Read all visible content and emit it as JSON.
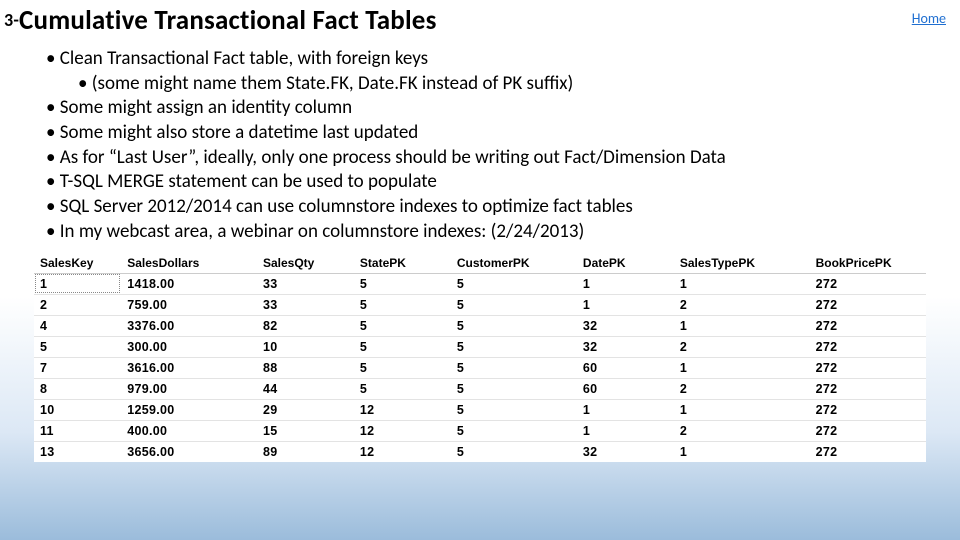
{
  "header": {
    "prefix": "3-",
    "title": "Cumulative Transactional Fact Tables",
    "home": "Home"
  },
  "bullets": [
    {
      "text": "Clean Transactional Fact table, with foreign keys",
      "sub": false
    },
    {
      "text": "(some might name them State.FK, Date.FK instead of PK suffix)",
      "sub": true
    },
    {
      "text": "Some might assign an identity column",
      "sub": false
    },
    {
      "text": "Some might also store a datetime last updated",
      "sub": false
    },
    {
      "text": "As for “Last User”, ideally, only one process should be writing out Fact/Dimension Data",
      "sub": false
    },
    {
      "text": "T-SQL MERGE statement can be used to populate",
      "sub": false
    },
    {
      "text": "SQL Server 2012/2014 can use columnstore indexes to optimize fact tables",
      "sub": false
    },
    {
      "text": "In my webcast area, a webinar on columnstore indexes: (2/24/2013)",
      "sub": false
    }
  ],
  "table": {
    "columns": [
      "SalesKey",
      "SalesDollars",
      "SalesQty",
      "StatePK",
      "CustomerPK",
      "DatePK",
      "SalesTypePK",
      "BookPricePK"
    ],
    "rows": [
      [
        "1",
        "1418.00",
        "33",
        "5",
        "5",
        "1",
        "1",
        "272"
      ],
      [
        "2",
        "759.00",
        "33",
        "5",
        "5",
        "1",
        "2",
        "272"
      ],
      [
        "4",
        "3376.00",
        "82",
        "5",
        "5",
        "32",
        "1",
        "272"
      ],
      [
        "5",
        "300.00",
        "10",
        "5",
        "5",
        "32",
        "2",
        "272"
      ],
      [
        "7",
        "3616.00",
        "88",
        "5",
        "5",
        "60",
        "1",
        "272"
      ],
      [
        "8",
        "979.00",
        "44",
        "5",
        "5",
        "60",
        "2",
        "272"
      ],
      [
        "10",
        "1259.00",
        "29",
        "12",
        "5",
        "1",
        "1",
        "272"
      ],
      [
        "11",
        "400.00",
        "15",
        "12",
        "5",
        "1",
        "2",
        "272"
      ],
      [
        "13",
        "3656.00",
        "89",
        "12",
        "5",
        "32",
        "1",
        "272"
      ]
    ],
    "col_widths_pct": [
      9,
      14,
      10,
      10,
      13,
      10,
      14,
      12
    ],
    "header_bg": "#ffffff",
    "row_border": "#e3e3e3",
    "font_family": "Arial",
    "header_fontsize": 12,
    "cell_fontsize": 12.5
  },
  "style": {
    "title_fontsize": 27,
    "title_prefix_fontsize": 18,
    "bullet_fontsize": 19,
    "link_color": "#1f6fd1",
    "bg_gradient": [
      "#ffffff",
      "#ffffff",
      "#dce8f5",
      "#9bbcdb"
    ]
  }
}
